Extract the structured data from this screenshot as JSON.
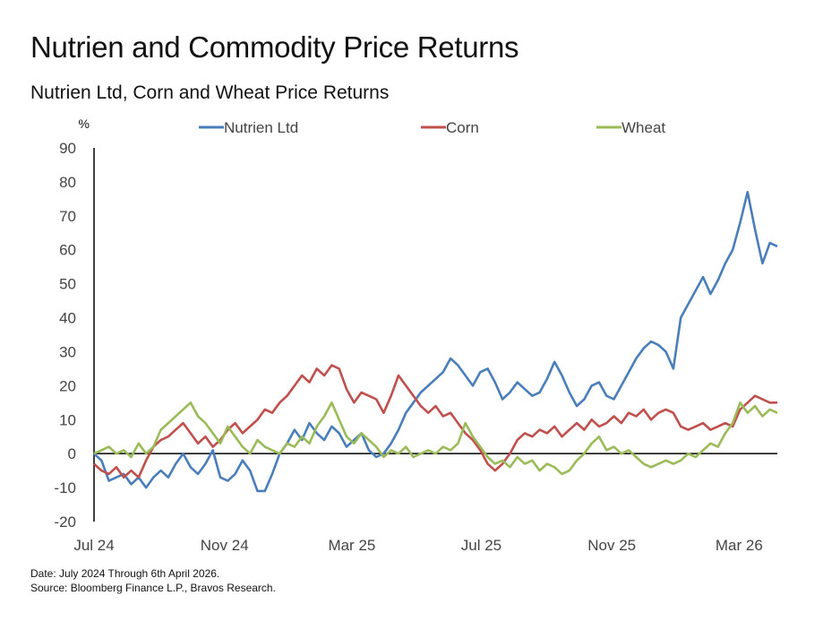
{
  "header": {
    "title": "Nutrien and Commodity Price Returns",
    "subtitle": "Nutrien Ltd, Corn and Wheat Price Returns"
  },
  "footnote": {
    "line1": "Date: July 2024 Through 6th April 2026.",
    "line2": "Source: Bloomberg Finance L.P., Bravos Research."
  },
  "chart_data": {
    "type": "line",
    "ylabel": "%",
    "ylim": [
      -20,
      90
    ],
    "yticks": [
      90,
      80,
      70,
      60,
      50,
      40,
      30,
      20,
      10,
      0,
      -10,
      -20
    ],
    "xlim": [
      "2024-07-01",
      "2026-04-06"
    ],
    "xticks": [
      {
        "label": "Jul 24",
        "date": "2024-07-01"
      },
      {
        "label": "Nov 24",
        "date": "2024-11-01"
      },
      {
        "label": "Mar 25",
        "date": "2025-03-01"
      },
      {
        "label": "Jul 25",
        "date": "2025-07-01"
      },
      {
        "label": "Nov 25",
        "date": "2025-11-01"
      },
      {
        "label": "Mar 26",
        "date": "2026-03-01"
      }
    ],
    "grid": false,
    "legend_position": "top",
    "colors": {
      "Nutrien Ltd": "#4a7ebb",
      "Corn": "#c0504d",
      "Wheat": "#9bbb59"
    },
    "series": [
      {
        "name": "Nutrien Ltd",
        "points": [
          [
            "2024-07-01",
            0
          ],
          [
            "2024-07-08",
            -2
          ],
          [
            "2024-07-15",
            -8
          ],
          [
            "2024-07-22",
            -7
          ],
          [
            "2024-07-29",
            -6
          ],
          [
            "2024-08-05",
            -9
          ],
          [
            "2024-08-12",
            -7
          ],
          [
            "2024-08-19",
            -10
          ],
          [
            "2024-08-26",
            -7
          ],
          [
            "2024-09-02",
            -5
          ],
          [
            "2024-09-09",
            -7
          ],
          [
            "2024-09-16",
            -3
          ],
          [
            "2024-09-23",
            0
          ],
          [
            "2024-09-30",
            -4
          ],
          [
            "2024-10-07",
            -6
          ],
          [
            "2024-10-14",
            -3
          ],
          [
            "2024-10-21",
            1
          ],
          [
            "2024-10-28",
            -7
          ],
          [
            "2024-11-04",
            -8
          ],
          [
            "2024-11-11",
            -6
          ],
          [
            "2024-11-18",
            -2
          ],
          [
            "2024-11-25",
            -5
          ],
          [
            "2024-12-02",
            -11
          ],
          [
            "2024-12-09",
            -11
          ],
          [
            "2024-12-16",
            -6
          ],
          [
            "2024-12-23",
            0
          ],
          [
            "2024-12-30",
            3
          ],
          [
            "2025-01-06",
            7
          ],
          [
            "2025-01-13",
            4
          ],
          [
            "2025-01-20",
            9
          ],
          [
            "2025-01-27",
            6
          ],
          [
            "2025-02-03",
            4
          ],
          [
            "2025-02-10",
            8
          ],
          [
            "2025-02-17",
            6
          ],
          [
            "2025-02-24",
            2
          ],
          [
            "2025-03-03",
            4
          ],
          [
            "2025-03-10",
            6
          ],
          [
            "2025-03-17",
            1
          ],
          [
            "2025-03-24",
            -1
          ],
          [
            "2025-03-31",
            0
          ],
          [
            "2025-04-07",
            3
          ],
          [
            "2025-04-14",
            7
          ],
          [
            "2025-04-21",
            12
          ],
          [
            "2025-04-28",
            15
          ],
          [
            "2025-05-05",
            18
          ],
          [
            "2025-05-12",
            20
          ],
          [
            "2025-05-19",
            22
          ],
          [
            "2025-05-26",
            24
          ],
          [
            "2025-06-02",
            28
          ],
          [
            "2025-06-09",
            26
          ],
          [
            "2025-06-16",
            23
          ],
          [
            "2025-06-23",
            20
          ],
          [
            "2025-06-30",
            24
          ],
          [
            "2025-07-07",
            25
          ],
          [
            "2025-07-14",
            21
          ],
          [
            "2025-07-21",
            16
          ],
          [
            "2025-07-28",
            18
          ],
          [
            "2025-08-04",
            21
          ],
          [
            "2025-08-11",
            19
          ],
          [
            "2025-08-18",
            17
          ],
          [
            "2025-08-25",
            18
          ],
          [
            "2025-09-01",
            22
          ],
          [
            "2025-09-08",
            27
          ],
          [
            "2025-09-15",
            23
          ],
          [
            "2025-09-22",
            18
          ],
          [
            "2025-09-29",
            14
          ],
          [
            "2025-10-06",
            16
          ],
          [
            "2025-10-13",
            20
          ],
          [
            "2025-10-20",
            21
          ],
          [
            "2025-10-27",
            17
          ],
          [
            "2025-11-03",
            16
          ],
          [
            "2025-11-10",
            20
          ],
          [
            "2025-11-17",
            24
          ],
          [
            "2025-11-24",
            28
          ],
          [
            "2025-12-01",
            31
          ],
          [
            "2025-12-08",
            33
          ],
          [
            "2025-12-15",
            32
          ],
          [
            "2025-12-22",
            30
          ],
          [
            "2025-12-29",
            25
          ],
          [
            "2026-01-05",
            40
          ],
          [
            "2026-01-12",
            44
          ],
          [
            "2026-01-19",
            48
          ],
          [
            "2026-01-26",
            52
          ],
          [
            "2026-02-02",
            47
          ],
          [
            "2026-02-09",
            51
          ],
          [
            "2026-02-16",
            56
          ],
          [
            "2026-02-23",
            60
          ],
          [
            "2026-03-02",
            68
          ],
          [
            "2026-03-09",
            77
          ],
          [
            "2026-03-16",
            66
          ],
          [
            "2026-03-23",
            56
          ],
          [
            "2026-03-30",
            62
          ],
          [
            "2026-04-06",
            61
          ]
        ]
      },
      {
        "name": "Corn",
        "points": [
          [
            "2024-07-01",
            -3
          ],
          [
            "2024-07-08",
            -5
          ],
          [
            "2024-07-15",
            -6
          ],
          [
            "2024-07-22",
            -4
          ],
          [
            "2024-07-29",
            -7
          ],
          [
            "2024-08-05",
            -5
          ],
          [
            "2024-08-12",
            -7
          ],
          [
            "2024-08-19",
            -2
          ],
          [
            "2024-08-26",
            2
          ],
          [
            "2024-09-02",
            4
          ],
          [
            "2024-09-09",
            5
          ],
          [
            "2024-09-16",
            7
          ],
          [
            "2024-09-23",
            9
          ],
          [
            "2024-09-30",
            6
          ],
          [
            "2024-10-07",
            3
          ],
          [
            "2024-10-14",
            5
          ],
          [
            "2024-10-21",
            2
          ],
          [
            "2024-10-28",
            4
          ],
          [
            "2024-11-04",
            7
          ],
          [
            "2024-11-11",
            9
          ],
          [
            "2024-11-18",
            6
          ],
          [
            "2024-11-25",
            8
          ],
          [
            "2024-12-02",
            10
          ],
          [
            "2024-12-09",
            13
          ],
          [
            "2024-12-16",
            12
          ],
          [
            "2024-12-23",
            15
          ],
          [
            "2024-12-30",
            17
          ],
          [
            "2025-01-06",
            20
          ],
          [
            "2025-01-13",
            23
          ],
          [
            "2025-01-20",
            21
          ],
          [
            "2025-01-27",
            25
          ],
          [
            "2025-02-03",
            23
          ],
          [
            "2025-02-10",
            26
          ],
          [
            "2025-02-17",
            25
          ],
          [
            "2025-02-24",
            19
          ],
          [
            "2025-03-03",
            15
          ],
          [
            "2025-03-10",
            18
          ],
          [
            "2025-03-17",
            17
          ],
          [
            "2025-03-24",
            16
          ],
          [
            "2025-03-31",
            12
          ],
          [
            "2025-04-07",
            17
          ],
          [
            "2025-04-14",
            23
          ],
          [
            "2025-04-21",
            20
          ],
          [
            "2025-04-28",
            17
          ],
          [
            "2025-05-05",
            14
          ],
          [
            "2025-05-12",
            12
          ],
          [
            "2025-05-19",
            14
          ],
          [
            "2025-05-26",
            11
          ],
          [
            "2025-06-02",
            12
          ],
          [
            "2025-06-09",
            9
          ],
          [
            "2025-06-16",
            6
          ],
          [
            "2025-06-23",
            4
          ],
          [
            "2025-06-30",
            1
          ],
          [
            "2025-07-07",
            -3
          ],
          [
            "2025-07-14",
            -5
          ],
          [
            "2025-07-21",
            -3
          ],
          [
            "2025-07-28",
            0
          ],
          [
            "2025-08-04",
            4
          ],
          [
            "2025-08-11",
            6
          ],
          [
            "2025-08-18",
            5
          ],
          [
            "2025-08-25",
            7
          ],
          [
            "2025-09-01",
            6
          ],
          [
            "2025-09-08",
            8
          ],
          [
            "2025-09-15",
            5
          ],
          [
            "2025-09-22",
            7
          ],
          [
            "2025-09-29",
            9
          ],
          [
            "2025-10-06",
            7
          ],
          [
            "2025-10-13",
            10
          ],
          [
            "2025-10-20",
            8
          ],
          [
            "2025-10-27",
            9
          ],
          [
            "2025-11-03",
            11
          ],
          [
            "2025-11-10",
            9
          ],
          [
            "2025-11-17",
            12
          ],
          [
            "2025-11-24",
            11
          ],
          [
            "2025-12-01",
            13
          ],
          [
            "2025-12-08",
            10
          ],
          [
            "2025-12-15",
            12
          ],
          [
            "2025-12-22",
            13
          ],
          [
            "2025-12-29",
            12
          ],
          [
            "2026-01-05",
            8
          ],
          [
            "2026-01-12",
            7
          ],
          [
            "2026-01-19",
            8
          ],
          [
            "2026-01-26",
            9
          ],
          [
            "2026-02-02",
            7
          ],
          [
            "2026-02-09",
            8
          ],
          [
            "2026-02-16",
            9
          ],
          [
            "2026-02-23",
            8
          ],
          [
            "2026-03-02",
            13
          ],
          [
            "2026-03-09",
            15
          ],
          [
            "2026-03-16",
            17
          ],
          [
            "2026-03-23",
            16
          ],
          [
            "2026-03-30",
            15
          ],
          [
            "2026-04-06",
            15
          ]
        ]
      },
      {
        "name": "Wheat",
        "points": [
          [
            "2024-07-01",
            0
          ],
          [
            "2024-07-08",
            1
          ],
          [
            "2024-07-15",
            2
          ],
          [
            "2024-07-22",
            0
          ],
          [
            "2024-07-29",
            1
          ],
          [
            "2024-08-05",
            -1
          ],
          [
            "2024-08-12",
            3
          ],
          [
            "2024-08-19",
            0
          ],
          [
            "2024-08-26",
            2
          ],
          [
            "2024-09-02",
            7
          ],
          [
            "2024-09-09",
            9
          ],
          [
            "2024-09-16",
            11
          ],
          [
            "2024-09-23",
            13
          ],
          [
            "2024-09-30",
            15
          ],
          [
            "2024-10-07",
            11
          ],
          [
            "2024-10-14",
            9
          ],
          [
            "2024-10-21",
            6
          ],
          [
            "2024-10-28",
            3
          ],
          [
            "2024-11-04",
            8
          ],
          [
            "2024-11-11",
            5
          ],
          [
            "2024-11-18",
            2
          ],
          [
            "2024-11-25",
            0
          ],
          [
            "2024-12-02",
            4
          ],
          [
            "2024-12-09",
            2
          ],
          [
            "2024-12-16",
            1
          ],
          [
            "2024-12-23",
            0
          ],
          [
            "2024-12-30",
            3
          ],
          [
            "2025-01-06",
            2
          ],
          [
            "2025-01-13",
            5
          ],
          [
            "2025-01-20",
            3
          ],
          [
            "2025-01-27",
            8
          ],
          [
            "2025-02-03",
            11
          ],
          [
            "2025-02-10",
            15
          ],
          [
            "2025-02-17",
            10
          ],
          [
            "2025-02-24",
            5
          ],
          [
            "2025-03-03",
            3
          ],
          [
            "2025-03-10",
            6
          ],
          [
            "2025-03-17",
            4
          ],
          [
            "2025-03-24",
            2
          ],
          [
            "2025-03-31",
            -1
          ],
          [
            "2025-04-07",
            1
          ],
          [
            "2025-04-14",
            0
          ],
          [
            "2025-04-21",
            2
          ],
          [
            "2025-04-28",
            -1
          ],
          [
            "2025-05-05",
            0
          ],
          [
            "2025-05-12",
            1
          ],
          [
            "2025-05-19",
            0
          ],
          [
            "2025-05-26",
            2
          ],
          [
            "2025-06-02",
            1
          ],
          [
            "2025-06-09",
            3
          ],
          [
            "2025-06-16",
            9
          ],
          [
            "2025-06-23",
            5
          ],
          [
            "2025-06-30",
            2
          ],
          [
            "2025-07-07",
            -1
          ],
          [
            "2025-07-14",
            -3
          ],
          [
            "2025-07-21",
            -2
          ],
          [
            "2025-07-28",
            -4
          ],
          [
            "2025-08-04",
            -1
          ],
          [
            "2025-08-11",
            -3
          ],
          [
            "2025-08-18",
            -2
          ],
          [
            "2025-08-25",
            -5
          ],
          [
            "2025-09-01",
            -3
          ],
          [
            "2025-09-08",
            -4
          ],
          [
            "2025-09-15",
            -6
          ],
          [
            "2025-09-22",
            -5
          ],
          [
            "2025-09-29",
            -2
          ],
          [
            "2025-10-06",
            0
          ],
          [
            "2025-10-13",
            3
          ],
          [
            "2025-10-20",
            5
          ],
          [
            "2025-10-27",
            1
          ],
          [
            "2025-11-03",
            2
          ],
          [
            "2025-11-10",
            0
          ],
          [
            "2025-11-17",
            1
          ],
          [
            "2025-11-24",
            -1
          ],
          [
            "2025-12-01",
            -3
          ],
          [
            "2025-12-08",
            -4
          ],
          [
            "2025-12-15",
            -3
          ],
          [
            "2025-12-22",
            -2
          ],
          [
            "2025-12-29",
            -3
          ],
          [
            "2026-01-05",
            -2
          ],
          [
            "2026-01-12",
            0
          ],
          [
            "2026-01-19",
            -1
          ],
          [
            "2026-01-26",
            1
          ],
          [
            "2026-02-02",
            3
          ],
          [
            "2026-02-09",
            2
          ],
          [
            "2026-02-16",
            6
          ],
          [
            "2026-02-23",
            9
          ],
          [
            "2026-03-02",
            15
          ],
          [
            "2026-03-09",
            12
          ],
          [
            "2026-03-16",
            14
          ],
          [
            "2026-03-23",
            11
          ],
          [
            "2026-03-30",
            13
          ],
          [
            "2026-04-06",
            12
          ]
        ]
      }
    ]
  }
}
